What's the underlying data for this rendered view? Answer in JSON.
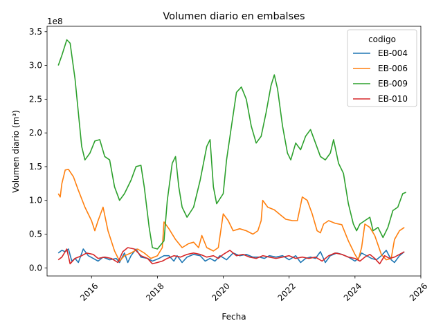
{
  "chart_data": {
    "type": "line",
    "title": "Volumen diario en embalses",
    "xlabel": "Fecha",
    "ylabel": "Volumen diario (m³)",
    "y_scale_label": "1e8",
    "xlim": [
      2014.65,
      2026.0
    ],
    "ylim": [
      -0.12,
      3.58
    ],
    "x_ticks": [
      2016,
      2018,
      2020,
      2022,
      2024,
      2026
    ],
    "x_tick_labels": [
      "2016",
      "2018",
      "2020",
      "2022",
      "2024",
      "2026"
    ],
    "y_ticks": [
      0.0,
      0.5,
      1.0,
      1.5,
      2.0,
      2.5,
      3.0,
      3.5
    ],
    "y_tick_labels": [
      "0.0",
      "0.5",
      "1.0",
      "1.5",
      "2.0",
      "2.5",
      "3.0",
      "3.5"
    ],
    "legend": {
      "title": "codigo",
      "position": "upper-right"
    },
    "series": [
      {
        "name": "EB-004",
        "color": "#1f77b4",
        "points": [
          [
            2014.99,
            0.22
          ],
          [
            2015.1,
            0.26
          ],
          [
            2015.2,
            0.24
          ],
          [
            2015.3,
            0.28
          ],
          [
            2015.4,
            0.1
          ],
          [
            2015.5,
            0.14
          ],
          [
            2015.6,
            0.08
          ],
          [
            2015.75,
            0.28
          ],
          [
            2015.9,
            0.18
          ],
          [
            2016.05,
            0.14
          ],
          [
            2016.2,
            0.1
          ],
          [
            2016.35,
            0.16
          ],
          [
            2016.55,
            0.12
          ],
          [
            2016.75,
            0.14
          ],
          [
            2016.85,
            0.08
          ],
          [
            2017.0,
            0.22
          ],
          [
            2017.1,
            0.08
          ],
          [
            2017.2,
            0.18
          ],
          [
            2017.35,
            0.28
          ],
          [
            2017.5,
            0.16
          ],
          [
            2017.7,
            0.14
          ],
          [
            2017.85,
            0.1
          ],
          [
            2018.05,
            0.14
          ],
          [
            2018.2,
            0.18
          ],
          [
            2018.35,
            0.18
          ],
          [
            2018.5,
            0.1
          ],
          [
            2018.6,
            0.18
          ],
          [
            2018.75,
            0.08
          ],
          [
            2018.9,
            0.16
          ],
          [
            2019.1,
            0.2
          ],
          [
            2019.3,
            0.18
          ],
          [
            2019.45,
            0.1
          ],
          [
            2019.6,
            0.14
          ],
          [
            2019.75,
            0.1
          ],
          [
            2019.9,
            0.18
          ],
          [
            2020.1,
            0.12
          ],
          [
            2020.3,
            0.22
          ],
          [
            2020.5,
            0.18
          ],
          [
            2020.7,
            0.2
          ],
          [
            2020.9,
            0.16
          ],
          [
            2021.1,
            0.16
          ],
          [
            2021.25,
            0.14
          ],
          [
            2021.4,
            0.18
          ],
          [
            2021.6,
            0.16
          ],
          [
            2021.8,
            0.18
          ],
          [
            2022.0,
            0.12
          ],
          [
            2022.2,
            0.18
          ],
          [
            2022.35,
            0.08
          ],
          [
            2022.5,
            0.14
          ],
          [
            2022.65,
            0.16
          ],
          [
            2022.8,
            0.14
          ],
          [
            2022.95,
            0.24
          ],
          [
            2023.1,
            0.08
          ],
          [
            2023.25,
            0.18
          ],
          [
            2023.45,
            0.22
          ],
          [
            2023.6,
            0.2
          ],
          [
            2023.8,
            0.16
          ],
          [
            2024.0,
            0.1
          ],
          [
            2024.1,
            0.14
          ],
          [
            2024.2,
            0.22
          ],
          [
            2024.35,
            0.18
          ],
          [
            2024.5,
            0.14
          ],
          [
            2024.65,
            0.12
          ],
          [
            2024.8,
            0.18
          ],
          [
            2024.95,
            0.26
          ],
          [
            2025.1,
            0.12
          ],
          [
            2025.2,
            0.08
          ],
          [
            2025.35,
            0.18
          ],
          [
            2025.5,
            0.24
          ]
        ]
      },
      {
        "name": "EB-006",
        "color": "#ff7f0e",
        "points": [
          [
            2014.99,
            1.1
          ],
          [
            2015.05,
            1.05
          ],
          [
            2015.1,
            1.25
          ],
          [
            2015.2,
            1.45
          ],
          [
            2015.3,
            1.46
          ],
          [
            2015.45,
            1.35
          ],
          [
            2015.6,
            1.15
          ],
          [
            2015.8,
            0.9
          ],
          [
            2016.0,
            0.7
          ],
          [
            2016.1,
            0.55
          ],
          [
            2016.2,
            0.7
          ],
          [
            2016.35,
            0.9
          ],
          [
            2016.5,
            0.55
          ],
          [
            2016.7,
            0.25
          ],
          [
            2016.85,
            0.1
          ],
          [
            2017.0,
            0.18
          ],
          [
            2017.2,
            0.22
          ],
          [
            2017.4,
            0.28
          ],
          [
            2017.6,
            0.22
          ],
          [
            2017.8,
            0.14
          ],
          [
            2018.0,
            0.18
          ],
          [
            2018.15,
            0.3
          ],
          [
            2018.2,
            0.68
          ],
          [
            2018.35,
            0.58
          ],
          [
            2018.55,
            0.42
          ],
          [
            2018.75,
            0.3
          ],
          [
            2018.95,
            0.36
          ],
          [
            2019.1,
            0.38
          ],
          [
            2019.25,
            0.3
          ],
          [
            2019.35,
            0.48
          ],
          [
            2019.5,
            0.3
          ],
          [
            2019.7,
            0.25
          ],
          [
            2019.85,
            0.3
          ],
          [
            2020.0,
            0.8
          ],
          [
            2020.15,
            0.7
          ],
          [
            2020.3,
            0.55
          ],
          [
            2020.5,
            0.58
          ],
          [
            2020.7,
            0.55
          ],
          [
            2020.9,
            0.5
          ],
          [
            2021.05,
            0.55
          ],
          [
            2021.15,
            0.7
          ],
          [
            2021.2,
            1.0
          ],
          [
            2021.35,
            0.9
          ],
          [
            2021.55,
            0.86
          ],
          [
            2021.75,
            0.78
          ],
          [
            2021.9,
            0.72
          ],
          [
            2022.1,
            0.7
          ],
          [
            2022.25,
            0.7
          ],
          [
            2022.4,
            1.05
          ],
          [
            2022.55,
            1.0
          ],
          [
            2022.7,
            0.8
          ],
          [
            2022.85,
            0.55
          ],
          [
            2022.95,
            0.52
          ],
          [
            2023.05,
            0.65
          ],
          [
            2023.2,
            0.7
          ],
          [
            2023.4,
            0.66
          ],
          [
            2023.6,
            0.64
          ],
          [
            2023.8,
            0.4
          ],
          [
            2024.0,
            0.2
          ],
          [
            2024.1,
            0.12
          ],
          [
            2024.2,
            0.3
          ],
          [
            2024.3,
            0.65
          ],
          [
            2024.45,
            0.6
          ],
          [
            2024.6,
            0.48
          ],
          [
            2024.8,
            0.2
          ],
          [
            2024.95,
            0.12
          ],
          [
            2025.1,
            0.14
          ],
          [
            2025.2,
            0.42
          ],
          [
            2025.35,
            0.55
          ],
          [
            2025.5,
            0.6
          ]
        ]
      },
      {
        "name": "EB-009",
        "color": "#2ca02c",
        "points": [
          [
            2014.99,
            3.0
          ],
          [
            2015.1,
            3.15
          ],
          [
            2015.25,
            3.38
          ],
          [
            2015.35,
            3.33
          ],
          [
            2015.5,
            2.8
          ],
          [
            2015.6,
            2.3
          ],
          [
            2015.7,
            1.8
          ],
          [
            2015.8,
            1.6
          ],
          [
            2015.95,
            1.7
          ],
          [
            2016.1,
            1.88
          ],
          [
            2016.25,
            1.9
          ],
          [
            2016.4,
            1.65
          ],
          [
            2016.55,
            1.6
          ],
          [
            2016.7,
            1.2
          ],
          [
            2016.85,
            1.0
          ],
          [
            2017.0,
            1.1
          ],
          [
            2017.2,
            1.3
          ],
          [
            2017.35,
            1.5
          ],
          [
            2017.5,
            1.52
          ],
          [
            2017.6,
            1.2
          ],
          [
            2017.75,
            0.6
          ],
          [
            2017.85,
            0.3
          ],
          [
            2018.0,
            0.28
          ],
          [
            2018.2,
            0.4
          ],
          [
            2018.3,
            1.0
          ],
          [
            2018.45,
            1.55
          ],
          [
            2018.55,
            1.65
          ],
          [
            2018.65,
            1.2
          ],
          [
            2018.75,
            0.9
          ],
          [
            2018.9,
            0.75
          ],
          [
            2019.1,
            0.9
          ],
          [
            2019.3,
            1.3
          ],
          [
            2019.5,
            1.8
          ],
          [
            2019.6,
            1.9
          ],
          [
            2019.7,
            1.2
          ],
          [
            2019.8,
            0.95
          ],
          [
            2020.0,
            1.1
          ],
          [
            2020.1,
            1.6
          ],
          [
            2020.25,
            2.1
          ],
          [
            2020.4,
            2.6
          ],
          [
            2020.55,
            2.68
          ],
          [
            2020.7,
            2.5
          ],
          [
            2020.85,
            2.1
          ],
          [
            2021.0,
            1.85
          ],
          [
            2021.15,
            1.95
          ],
          [
            2021.3,
            2.3
          ],
          [
            2021.45,
            2.7
          ],
          [
            2021.55,
            2.86
          ],
          [
            2021.65,
            2.65
          ],
          [
            2021.8,
            2.1
          ],
          [
            2021.95,
            1.7
          ],
          [
            2022.05,
            1.6
          ],
          [
            2022.2,
            1.85
          ],
          [
            2022.35,
            1.75
          ],
          [
            2022.5,
            1.95
          ],
          [
            2022.65,
            2.05
          ],
          [
            2022.8,
            1.85
          ],
          [
            2022.95,
            1.65
          ],
          [
            2023.1,
            1.6
          ],
          [
            2023.25,
            1.7
          ],
          [
            2023.35,
            1.9
          ],
          [
            2023.5,
            1.55
          ],
          [
            2023.65,
            1.4
          ],
          [
            2023.8,
            0.95
          ],
          [
            2023.95,
            0.65
          ],
          [
            2024.05,
            0.55
          ],
          [
            2024.15,
            0.65
          ],
          [
            2024.3,
            0.7
          ],
          [
            2024.45,
            0.75
          ],
          [
            2024.55,
            0.55
          ],
          [
            2024.7,
            0.6
          ],
          [
            2024.85,
            0.45
          ],
          [
            2025.0,
            0.6
          ],
          [
            2025.15,
            0.85
          ],
          [
            2025.3,
            0.9
          ],
          [
            2025.45,
            1.1
          ],
          [
            2025.55,
            1.12
          ]
        ]
      },
      {
        "name": "EB-010",
        "color": "#d62728",
        "points": [
          [
            2014.99,
            0.12
          ],
          [
            2015.1,
            0.16
          ],
          [
            2015.25,
            0.28
          ],
          [
            2015.35,
            0.06
          ],
          [
            2015.5,
            0.14
          ],
          [
            2015.7,
            0.18
          ],
          [
            2015.85,
            0.22
          ],
          [
            2016.05,
            0.2
          ],
          [
            2016.2,
            0.14
          ],
          [
            2016.4,
            0.16
          ],
          [
            2016.6,
            0.14
          ],
          [
            2016.8,
            0.08
          ],
          [
            2016.95,
            0.24
          ],
          [
            2017.1,
            0.3
          ],
          [
            2017.3,
            0.28
          ],
          [
            2017.5,
            0.18
          ],
          [
            2017.7,
            0.14
          ],
          [
            2017.85,
            0.06
          ],
          [
            2018.0,
            0.08
          ],
          [
            2018.15,
            0.1
          ],
          [
            2018.3,
            0.14
          ],
          [
            2018.5,
            0.18
          ],
          [
            2018.7,
            0.16
          ],
          [
            2018.9,
            0.2
          ],
          [
            2019.1,
            0.22
          ],
          [
            2019.3,
            0.2
          ],
          [
            2019.5,
            0.16
          ],
          [
            2019.7,
            0.18
          ],
          [
            2019.85,
            0.14
          ],
          [
            2020.0,
            0.2
          ],
          [
            2020.2,
            0.26
          ],
          [
            2020.4,
            0.18
          ],
          [
            2020.6,
            0.2
          ],
          [
            2020.8,
            0.16
          ],
          [
            2021.0,
            0.14
          ],
          [
            2021.2,
            0.18
          ],
          [
            2021.4,
            0.16
          ],
          [
            2021.6,
            0.14
          ],
          [
            2021.8,
            0.16
          ],
          [
            2022.0,
            0.18
          ],
          [
            2022.2,
            0.14
          ],
          [
            2022.4,
            0.16
          ],
          [
            2022.6,
            0.14
          ],
          [
            2022.8,
            0.16
          ],
          [
            2023.0,
            0.1
          ],
          [
            2023.2,
            0.18
          ],
          [
            2023.4,
            0.22
          ],
          [
            2023.6,
            0.2
          ],
          [
            2023.8,
            0.16
          ],
          [
            2024.0,
            0.14
          ],
          [
            2024.15,
            0.1
          ],
          [
            2024.3,
            0.16
          ],
          [
            2024.45,
            0.2
          ],
          [
            2024.6,
            0.14
          ],
          [
            2024.75,
            0.06
          ],
          [
            2024.9,
            0.18
          ],
          [
            2025.05,
            0.14
          ],
          [
            2025.2,
            0.16
          ],
          [
            2025.35,
            0.2
          ],
          [
            2025.5,
            0.24
          ]
        ]
      }
    ]
  }
}
